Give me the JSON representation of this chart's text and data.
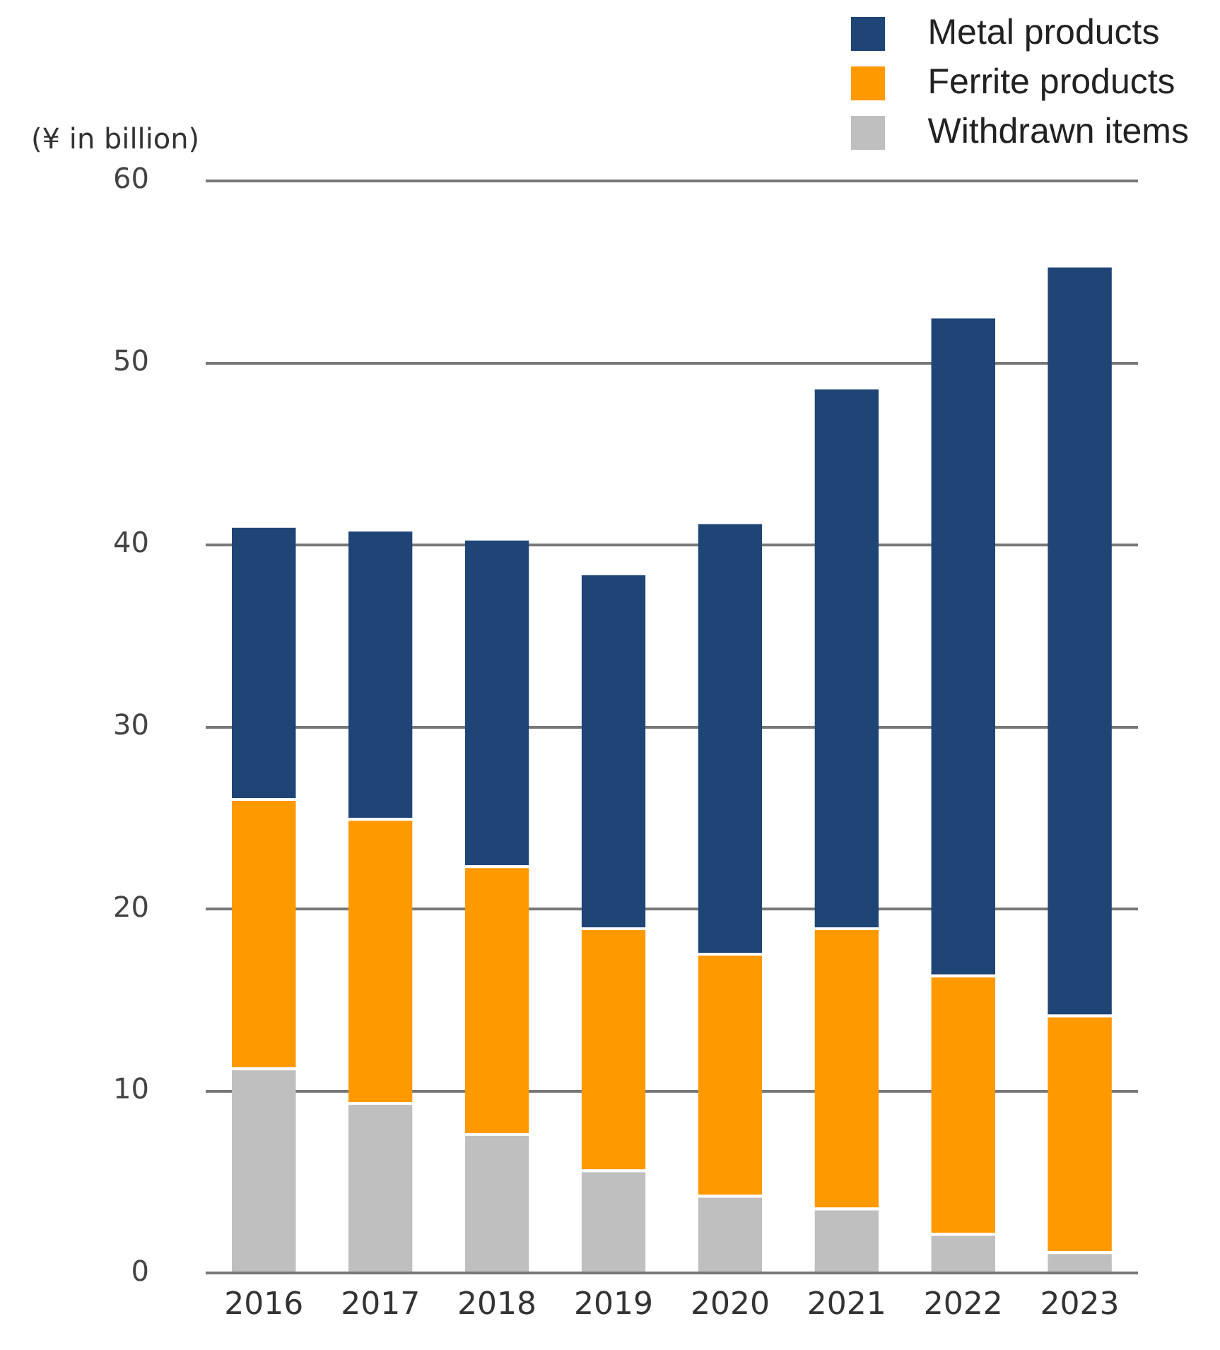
{
  "chart_data": {
    "type": "bar",
    "stacked": true,
    "ylabel": "(¥ in billion)",
    "categories": [
      "2016",
      "2017",
      "2018",
      "2019",
      "2020",
      "2021",
      "2022",
      "2023"
    ],
    "series": [
      {
        "name": "Withdrawn items",
        "color": "#bfbfbf",
        "values": [
          11.3,
          9.4,
          7.7,
          5.7,
          4.3,
          3.6,
          2.2,
          1.2
        ]
      },
      {
        "name": "Ferrite products",
        "color": "#ff9900",
        "values": [
          14.8,
          15.6,
          14.7,
          13.3,
          13.3,
          15.4,
          14.2,
          13.0
        ]
      },
      {
        "name": "Metal products",
        "color": "#1f4577",
        "values": [
          15.0,
          15.9,
          18.0,
          19.5,
          23.7,
          29.7,
          36.2,
          41.2
        ]
      }
    ],
    "ylim": [
      0,
      60
    ],
    "yticks": [
      0,
      10,
      20,
      30,
      40,
      50,
      60
    ],
    "grid": "y",
    "legend": "top right"
  }
}
